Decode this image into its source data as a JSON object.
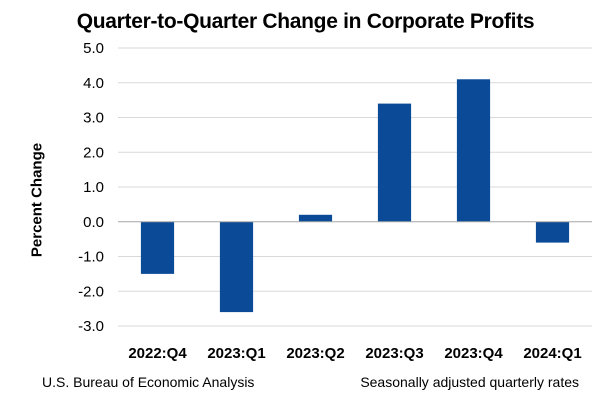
{
  "chart_data": {
    "type": "bar",
    "title": "Quarter-to-Quarter Change in Corporate Profits",
    "xlabel": "",
    "ylabel": "Percent Change",
    "categories": [
      "2022:Q4",
      "2023:Q1",
      "2023:Q2",
      "2023:Q3",
      "2023:Q4",
      "2024:Q1"
    ],
    "values": [
      -1.5,
      -2.6,
      0.2,
      3.4,
      4.1,
      -0.6
    ],
    "ylim": [
      -3.0,
      5.0
    ],
    "yticks": [
      "-3.0",
      "-2.0",
      "-1.0",
      "0.0",
      "1.0",
      "2.0",
      "3.0",
      "4.0",
      "5.0"
    ],
    "grid": true,
    "bar_color": "#0a4a96",
    "grid_color": "#d9d9d9",
    "source": "U.S. Bureau of Economic Analysis",
    "note": "Seasonally adjusted quarterly rates"
  }
}
